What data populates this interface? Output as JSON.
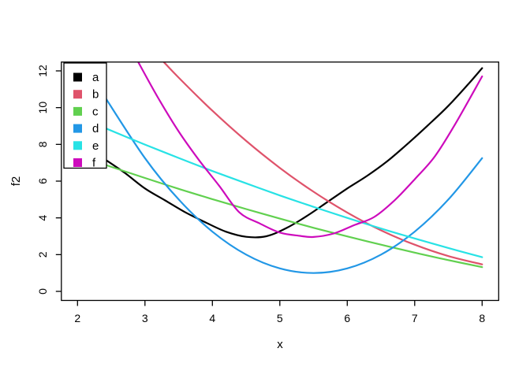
{
  "chart_data": {
    "type": "line",
    "title": "",
    "xlabel": "x",
    "ylabel": "f2",
    "xlim": [
      1.76,
      8.24
    ],
    "ylim": [
      -0.48,
      12.48
    ],
    "x_ticks": [
      "2",
      "3",
      "4",
      "5",
      "6",
      "7",
      "8"
    ],
    "x_tick_values": [
      2,
      3,
      4,
      5,
      6,
      7,
      8
    ],
    "y_ticks": [
      "0",
      "2",
      "4",
      "6",
      "8",
      "10",
      "12"
    ],
    "y_tick_values": [
      0,
      2,
      4,
      6,
      8,
      10,
      12
    ],
    "grid": false,
    "frame_color": "#000000",
    "background": "#ffffff",
    "line_width": 2.2,
    "legend": {
      "position": "top-left",
      "symbol": "filled-square",
      "entries": [
        {
          "label": "a",
          "color": "#000000"
        },
        {
          "label": "b",
          "color": "#DF536B"
        },
        {
          "label": "c",
          "color": "#61D04F"
        },
        {
          "label": "d",
          "color": "#2297E6"
        },
        {
          "label": "e",
          "color": "#28E2E5"
        },
        {
          "label": "f",
          "color": "#CD0BBC"
        }
      ]
    },
    "series": [
      {
        "name": "a",
        "color": "#000000",
        "points": [
          [
            2.4,
            7.2
          ],
          [
            2.7,
            6.45
          ],
          [
            3.0,
            5.6
          ],
          [
            3.3,
            4.95
          ],
          [
            3.6,
            4.3
          ],
          [
            3.9,
            3.75
          ],
          [
            4.2,
            3.25
          ],
          [
            4.5,
            2.97
          ],
          [
            4.8,
            3.0
          ],
          [
            5.1,
            3.45
          ],
          [
            5.4,
            4.1
          ],
          [
            5.7,
            4.85
          ],
          [
            6.0,
            5.6
          ],
          [
            6.3,
            6.3
          ],
          [
            6.6,
            7.1
          ],
          [
            6.9,
            8.05
          ],
          [
            7.2,
            9.05
          ],
          [
            7.5,
            10.1
          ],
          [
            7.8,
            11.3
          ],
          [
            8.0,
            12.15
          ]
        ]
      },
      {
        "name": "b",
        "color": "#DF536B",
        "points": [
          [
            3.28,
            12.48
          ],
          [
            3.5,
            11.63
          ],
          [
            4.0,
            9.83
          ],
          [
            4.5,
            8.19
          ],
          [
            5.0,
            6.72
          ],
          [
            5.5,
            5.42
          ],
          [
            6.0,
            4.29
          ],
          [
            6.5,
            3.32
          ],
          [
            7.0,
            2.54
          ],
          [
            7.5,
            1.92
          ],
          [
            8.0,
            1.47
          ]
        ]
      },
      {
        "name": "c",
        "color": "#61D04F",
        "points": [
          [
            2.4,
            6.9
          ],
          [
            3.0,
            6.17
          ],
          [
            3.5,
            5.58
          ],
          [
            4.0,
            5.02
          ],
          [
            4.5,
            4.48
          ],
          [
            5.0,
            3.96
          ],
          [
            5.5,
            3.46
          ],
          [
            6.0,
            2.99
          ],
          [
            6.5,
            2.54
          ],
          [
            7.0,
            2.11
          ],
          [
            7.5,
            1.7
          ],
          [
            8.0,
            1.32
          ]
        ]
      },
      {
        "name": "d",
        "color": "#2297E6",
        "points": [
          [
            2.4,
            10.61
          ],
          [
            3.0,
            7.25
          ],
          [
            3.5,
            5.0
          ],
          [
            4.0,
            3.25
          ],
          [
            4.5,
            2.0
          ],
          [
            5.0,
            1.25
          ],
          [
            5.5,
            1.0
          ],
          [
            6.0,
            1.25
          ],
          [
            6.5,
            2.0
          ],
          [
            7.0,
            3.25
          ],
          [
            7.5,
            5.0
          ],
          [
            8.0,
            7.25
          ]
        ]
      },
      {
        "name": "e",
        "color": "#28E2E5",
        "points": [
          [
            2.4,
            8.9
          ],
          [
            3.0,
            7.99
          ],
          [
            3.5,
            7.26
          ],
          [
            4.0,
            6.55
          ],
          [
            4.5,
            5.88
          ],
          [
            5.0,
            5.22
          ],
          [
            5.5,
            4.6
          ],
          [
            6.0,
            4.0
          ],
          [
            6.5,
            3.42
          ],
          [
            7.0,
            2.88
          ],
          [
            7.5,
            2.36
          ],
          [
            8.0,
            1.86
          ]
        ]
      },
      {
        "name": "f",
        "color": "#CD0BBC",
        "points": [
          [
            2.9,
            12.48
          ],
          [
            3.2,
            10.5
          ],
          [
            3.5,
            8.7
          ],
          [
            3.8,
            7.15
          ],
          [
            4.1,
            5.75
          ],
          [
            4.4,
            4.3
          ],
          [
            4.7,
            3.7
          ],
          [
            5.0,
            3.2
          ],
          [
            5.3,
            3.02
          ],
          [
            5.5,
            2.96
          ],
          [
            5.8,
            3.15
          ],
          [
            6.1,
            3.6
          ],
          [
            6.4,
            4.05
          ],
          [
            6.7,
            4.95
          ],
          [
            7.0,
            6.1
          ],
          [
            7.3,
            7.35
          ],
          [
            7.6,
            9.1
          ],
          [
            8.0,
            11.7
          ]
        ]
      }
    ]
  }
}
